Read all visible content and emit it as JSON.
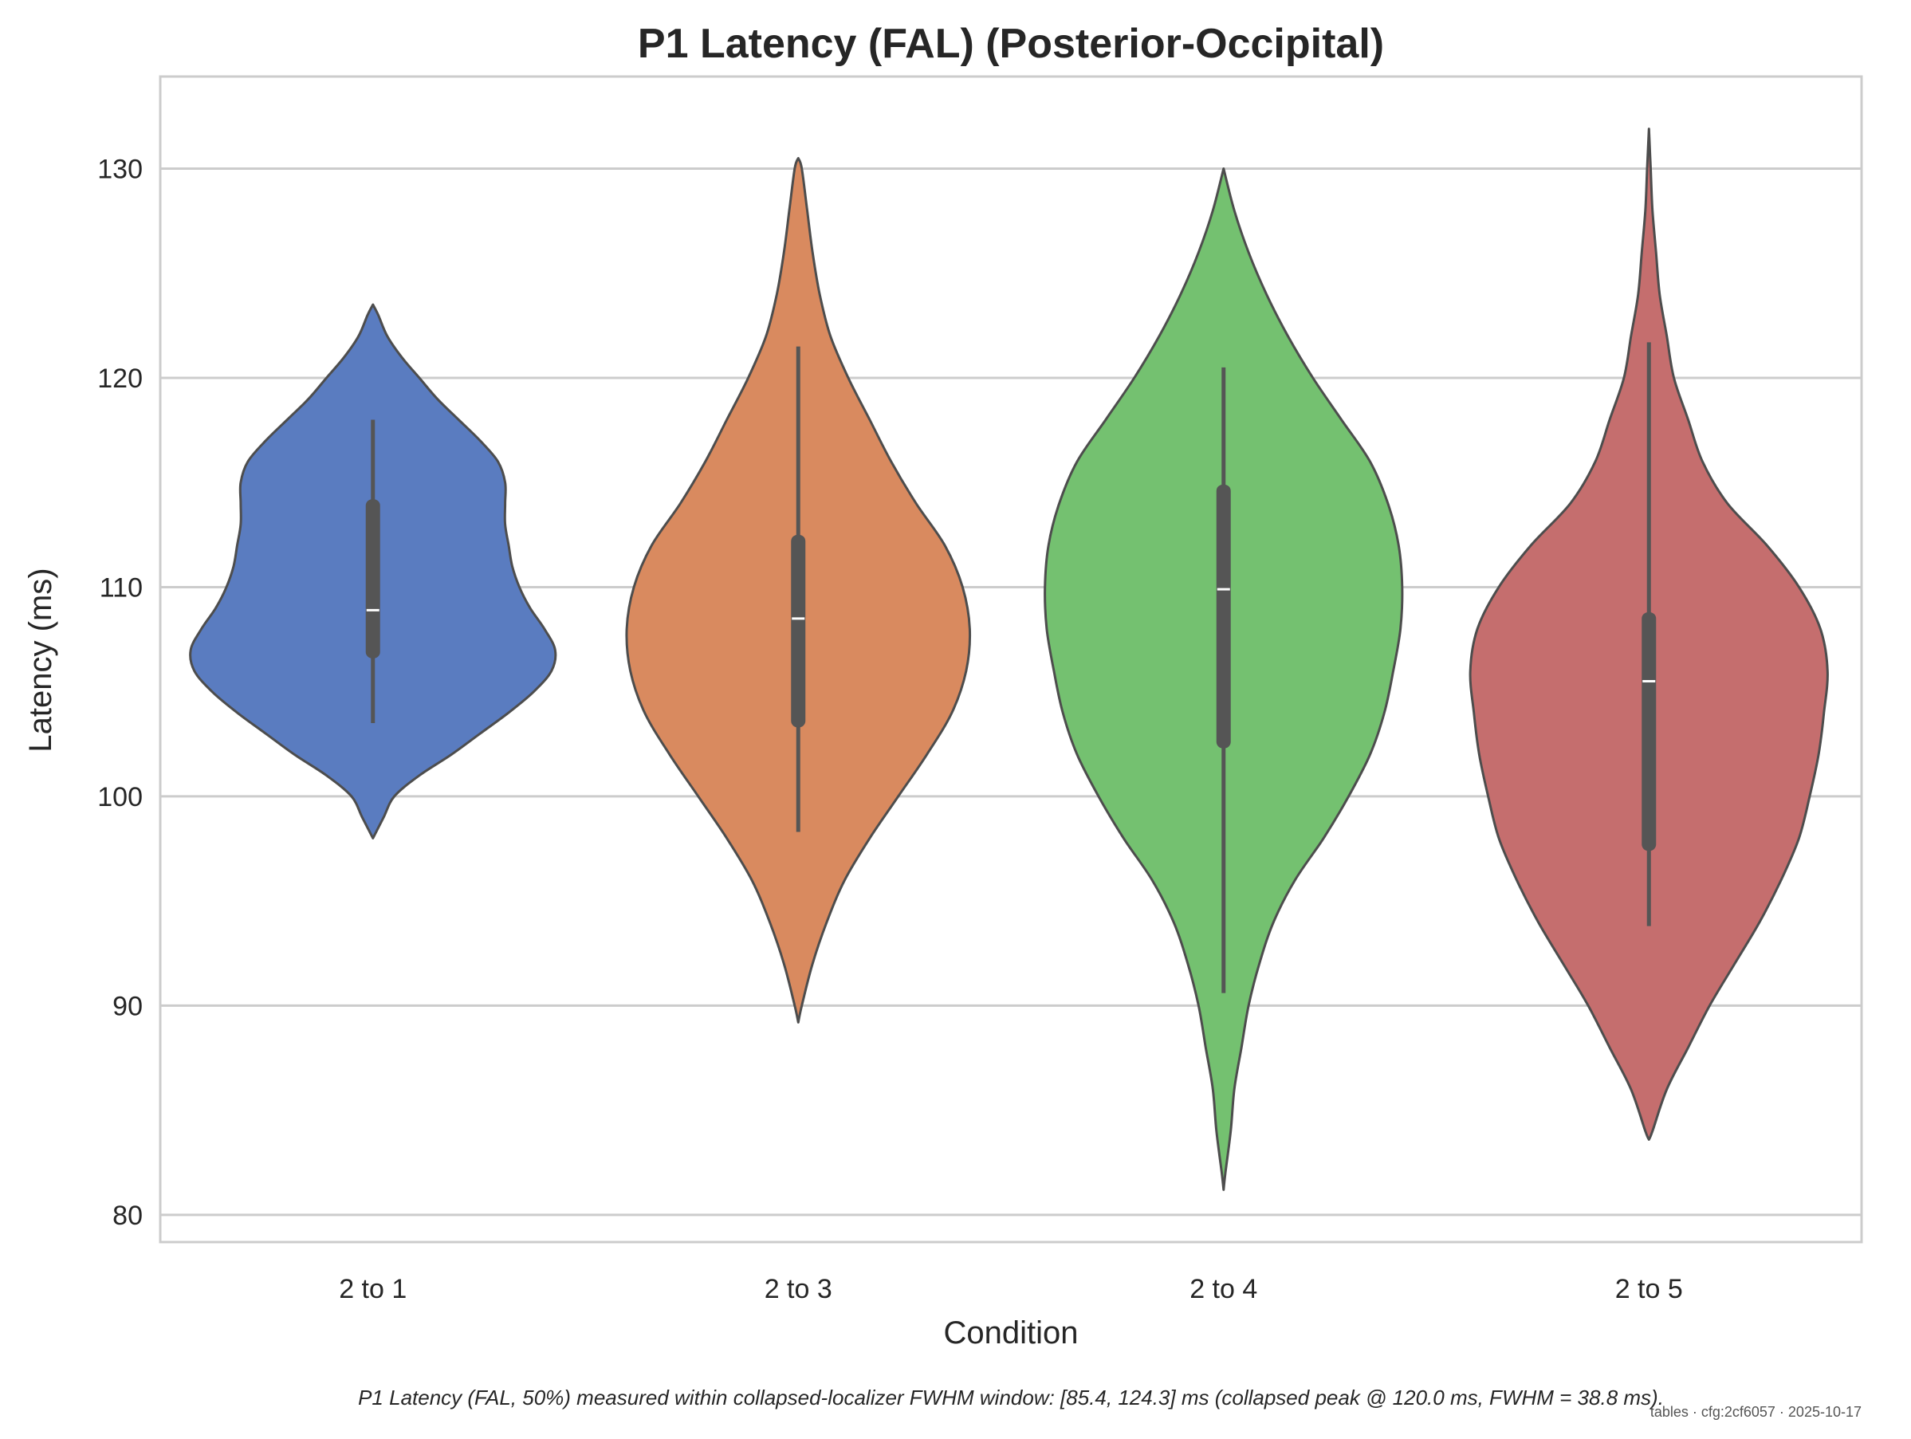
{
  "chart_data": {
    "type": "violin",
    "title": "P1 Latency (FAL) (Posterior-Occipital)",
    "xlabel": "Condition",
    "ylabel": "Latency (ms)",
    "categories": [
      "2 to 1",
      "2 to 3",
      "2 to 4",
      "2 to 5"
    ],
    "yticks": [
      80,
      90,
      100,
      110,
      120,
      130
    ],
    "ylim": [
      78.7,
      134.4
    ],
    "grid": "horizontal",
    "colors": [
      "#5a7cc0",
      "#d98a5f",
      "#74c170",
      "#c56e6e"
    ],
    "edge_color": "#4d4d4d",
    "series": [
      {
        "category": "2 to 1",
        "min": 98.0,
        "max": 123.5,
        "q1": 106.6,
        "median": 108.9,
        "q3": 114.2,
        "whisker_low": 103.5,
        "whisker_high": 118.0,
        "density": [
          [
            98.0,
            0.0
          ],
          [
            99.0,
            0.06
          ],
          [
            100.0,
            0.12
          ],
          [
            101.0,
            0.26
          ],
          [
            102.0,
            0.44
          ],
          [
            103.0,
            0.6
          ],
          [
            104.0,
            0.76
          ],
          [
            105.0,
            0.9
          ],
          [
            106.0,
            1.0
          ],
          [
            107.0,
            1.02
          ],
          [
            108.0,
            0.96
          ],
          [
            109.0,
            0.88
          ],
          [
            110.0,
            0.82
          ],
          [
            111.0,
            0.78
          ],
          [
            112.0,
            0.76
          ],
          [
            113.0,
            0.74
          ],
          [
            114.0,
            0.74
          ],
          [
            115.0,
            0.74
          ],
          [
            116.0,
            0.7
          ],
          [
            117.0,
            0.6
          ],
          [
            118.0,
            0.48
          ],
          [
            119.0,
            0.36
          ],
          [
            120.0,
            0.26
          ],
          [
            121.0,
            0.16
          ],
          [
            122.0,
            0.08
          ],
          [
            123.0,
            0.03
          ],
          [
            123.5,
            0.0
          ]
        ]
      },
      {
        "category": "2 to 3",
        "min": 89.2,
        "max": 130.5,
        "q1": 103.3,
        "median": 108.5,
        "q3": 112.5,
        "whisker_low": 98.3,
        "whisker_high": 121.5,
        "density": [
          [
            89.2,
            0.0
          ],
          [
            90.0,
            0.02
          ],
          [
            92.0,
            0.08
          ],
          [
            94.0,
            0.16
          ],
          [
            96.0,
            0.26
          ],
          [
            98.0,
            0.4
          ],
          [
            100.0,
            0.56
          ],
          [
            102.0,
            0.72
          ],
          [
            104.0,
            0.86
          ],
          [
            106.0,
            0.94
          ],
          [
            108.0,
            0.96
          ],
          [
            110.0,
            0.92
          ],
          [
            112.0,
            0.82
          ],
          [
            114.0,
            0.66
          ],
          [
            116.0,
            0.52
          ],
          [
            118.0,
            0.4
          ],
          [
            120.0,
            0.28
          ],
          [
            122.0,
            0.18
          ],
          [
            124.0,
            0.12
          ],
          [
            126.0,
            0.08
          ],
          [
            128.0,
            0.05
          ],
          [
            130.0,
            0.02
          ],
          [
            130.5,
            0.0
          ]
        ]
      },
      {
        "category": "2 to 4",
        "min": 81.2,
        "max": 130.0,
        "q1": 102.3,
        "median": 109.9,
        "q3": 114.9,
        "whisker_low": 90.6,
        "whisker_high": 120.5,
        "density": [
          [
            81.2,
            0.0
          ],
          [
            82.0,
            0.01
          ],
          [
            84.0,
            0.04
          ],
          [
            86.0,
            0.06
          ],
          [
            88.0,
            0.1
          ],
          [
            90.0,
            0.14
          ],
          [
            92.0,
            0.2
          ],
          [
            94.0,
            0.28
          ],
          [
            96.0,
            0.4
          ],
          [
            98.0,
            0.56
          ],
          [
            100.0,
            0.7
          ],
          [
            102.0,
            0.82
          ],
          [
            104.0,
            0.9
          ],
          [
            106.0,
            0.95
          ],
          [
            108.0,
            0.99
          ],
          [
            110.0,
            1.0
          ],
          [
            112.0,
            0.98
          ],
          [
            114.0,
            0.92
          ],
          [
            116.0,
            0.82
          ],
          [
            118.0,
            0.66
          ],
          [
            120.0,
            0.5
          ],
          [
            122.0,
            0.36
          ],
          [
            124.0,
            0.24
          ],
          [
            126.0,
            0.14
          ],
          [
            128.0,
            0.06
          ],
          [
            130.0,
            0.0
          ]
        ]
      },
      {
        "category": "2 to 5",
        "min": 83.6,
        "max": 131.9,
        "q1": 97.4,
        "median": 105.5,
        "q3": 108.8,
        "whisker_low": 93.8,
        "whisker_high": 121.7,
        "density": [
          [
            83.6,
            0.0
          ],
          [
            84.0,
            0.02
          ],
          [
            86.0,
            0.1
          ],
          [
            88.0,
            0.22
          ],
          [
            90.0,
            0.34
          ],
          [
            92.0,
            0.48
          ],
          [
            94.0,
            0.62
          ],
          [
            96.0,
            0.74
          ],
          [
            98.0,
            0.84
          ],
          [
            100.0,
            0.9
          ],
          [
            102.0,
            0.95
          ],
          [
            104.0,
            0.98
          ],
          [
            106.0,
            1.0
          ],
          [
            108.0,
            0.96
          ],
          [
            110.0,
            0.84
          ],
          [
            112.0,
            0.66
          ],
          [
            114.0,
            0.44
          ],
          [
            116.0,
            0.3
          ],
          [
            118.0,
            0.22
          ],
          [
            120.0,
            0.14
          ],
          [
            122.0,
            0.1
          ],
          [
            124.0,
            0.06
          ],
          [
            126.0,
            0.04
          ],
          [
            128.0,
            0.02
          ],
          [
            130.0,
            0.01
          ],
          [
            131.9,
            0.0
          ]
        ]
      }
    ]
  },
  "caption": "P1 Latency (FAL, 50%) measured within collapsed-localizer FWHM window: [85.4, 124.3] ms (collapsed peak @ 120.0 ms, FWHM = 38.8 ms).",
  "stamp": "tables · cfg:2cf6057 · 2025-10-17"
}
